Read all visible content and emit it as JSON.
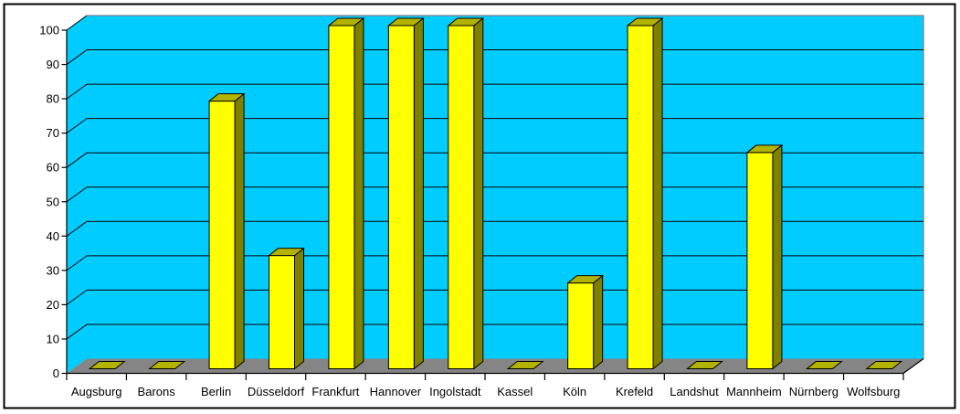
{
  "chart_data": {
    "type": "bar",
    "style": "3d-column",
    "title": "",
    "xlabel": "",
    "ylabel": "",
    "categories": [
      "Augsburg",
      "Barons",
      "Berlin",
      "Düsseldorf",
      "Frankfurt",
      "Hannover",
      "Ingolstadt",
      "Kassel",
      "Köln",
      "Krefeld",
      "Landshut",
      "Mannheim",
      "Nürnberg",
      "Wolfsburg"
    ],
    "values": [
      0,
      0,
      78,
      33,
      100,
      100,
      100,
      0,
      25,
      100,
      0,
      63,
      0,
      0
    ],
    "ylim": [
      0,
      100
    ],
    "ytick_step": 10,
    "ytick_labels": [
      "0",
      "10",
      "20",
      "30",
      "40",
      "50",
      "60",
      "70",
      "80",
      "90",
      "100"
    ],
    "grid": true,
    "legend": false
  },
  "colors": {
    "wall": "#00CCFF",
    "wall_border": "#848284",
    "floor": "#858585",
    "bar_front": "#FFFF00",
    "bar_side": "#808000",
    "bar_top": "#B2B200",
    "gridline": "#000000",
    "axis": "#000000",
    "frame_border": "#000000",
    "background": "#FFFFFF"
  }
}
